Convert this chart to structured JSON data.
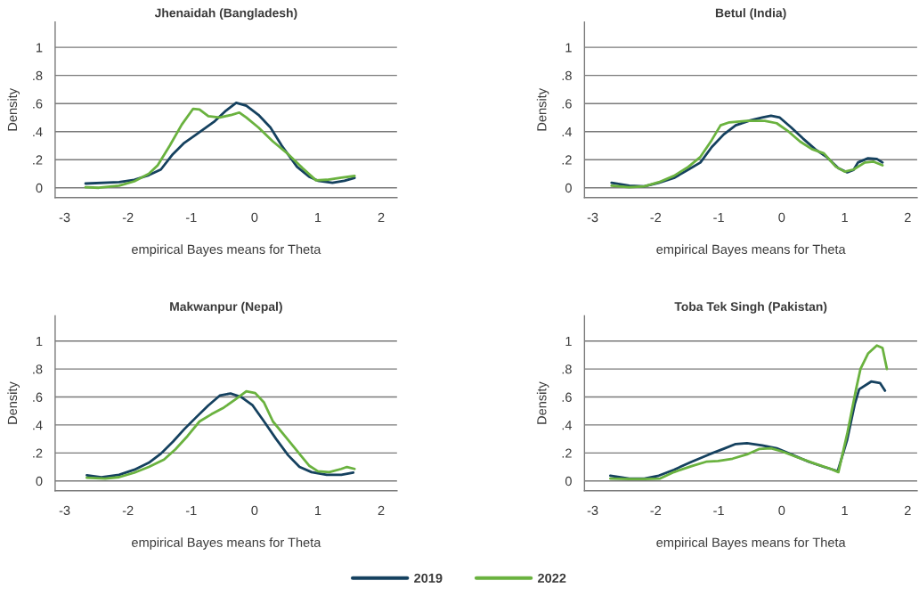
{
  "chart_data": [
    {
      "type": "line",
      "title": "Jhenaidah (Bangladesh)",
      "xlabel": "empirical Bayes means for Theta",
      "ylabel": "Density",
      "xlim": [
        -3.15,
        2.25
      ],
      "ylim": [
        -0.07,
        1.18
      ],
      "xticks": [
        -3,
        -2,
        -1,
        0,
        1,
        2
      ],
      "yticks": [
        0,
        {
          "value": 0.2,
          "label": ".2"
        },
        {
          "value": 0.4,
          "label": ".4"
        },
        {
          "value": 0.6,
          "label": ".6"
        },
        {
          "value": 0.8,
          "label": ".8"
        },
        1
      ],
      "grid": "y",
      "line_style": "solid",
      "marker": "none",
      "series": [
        {
          "color": "#15415f",
          "x": [
            -2.67,
            -2.14,
            -1.9,
            -1.67,
            -1.48,
            -1.29,
            -1.11,
            -0.92,
            -0.64,
            -0.45,
            -0.29,
            -0.13,
            0.06,
            0.25,
            0.43,
            0.67,
            0.86,
            1.0,
            1.23,
            1.42,
            1.58
          ],
          "values": [
            0.03,
            0.04,
            0.057,
            0.09,
            0.13,
            0.24,
            0.32,
            0.38,
            0.47,
            0.55,
            0.605,
            0.585,
            0.52,
            0.43,
            0.3,
            0.15,
            0.08,
            0.05,
            0.036,
            0.05,
            0.07
          ]
        },
        {
          "color": "#6ab23f",
          "x": [
            -2.67,
            -2.46,
            -2.14,
            -1.9,
            -1.67,
            -1.53,
            -1.34,
            -1.15,
            -0.97,
            -0.87,
            -0.73,
            -0.55,
            -0.36,
            -0.24,
            -0.13,
            0.06,
            0.29,
            0.53,
            0.76,
            0.97,
            1.14,
            1.37,
            1.58
          ],
          "values": [
            0.004,
            0.0,
            0.015,
            0.046,
            0.1,
            0.16,
            0.3,
            0.45,
            0.563,
            0.557,
            0.51,
            0.5,
            0.52,
            0.536,
            0.5,
            0.43,
            0.33,
            0.24,
            0.14,
            0.053,
            0.057,
            0.072,
            0.084
          ]
        }
      ]
    },
    {
      "type": "line",
      "title": "Betul (India)",
      "xlabel": "empirical Bayes means for Theta",
      "ylabel": "Density",
      "xlim": [
        -3.13,
        2.15
      ],
      "ylim": [
        -0.07,
        1.18
      ],
      "xticks": [
        -3,
        -2,
        -1,
        0,
        1,
        2
      ],
      "yticks": [
        0,
        {
          "value": 0.2,
          "label": ".2"
        },
        {
          "value": 0.4,
          "label": ".4"
        },
        {
          "value": 0.6,
          "label": ".6"
        },
        {
          "value": 0.8,
          "label": ".8"
        },
        1
      ],
      "grid": "y",
      "line_style": "solid",
      "marker": "none",
      "series": [
        {
          "color": "#15415f",
          "x": [
            -2.7,
            -2.42,
            -2.18,
            -1.95,
            -1.71,
            -1.48,
            -1.29,
            -1.11,
            -0.92,
            -0.73,
            -0.5,
            -0.31,
            -0.17,
            -0.03,
            0.15,
            0.34,
            0.53,
            0.71,
            0.9,
            1.04,
            1.14,
            1.21,
            1.37,
            1.51,
            1.6
          ],
          "values": [
            0.036,
            0.015,
            0.01,
            0.036,
            0.07,
            0.13,
            0.18,
            0.29,
            0.38,
            0.445,
            0.48,
            0.5,
            0.513,
            0.5,
            0.43,
            0.35,
            0.275,
            0.22,
            0.14,
            0.11,
            0.127,
            0.18,
            0.21,
            0.205,
            0.18
          ]
        },
        {
          "color": "#6ab23f",
          "x": [
            -2.7,
            -2.42,
            -2.18,
            -1.95,
            -1.71,
            -1.48,
            -1.29,
            -1.11,
            -0.97,
            -0.83,
            -0.55,
            -0.27,
            -0.08,
            0.11,
            0.29,
            0.48,
            0.67,
            0.86,
            1.0,
            1.14,
            1.32,
            1.46,
            1.6
          ],
          "values": [
            0.015,
            0.004,
            0.01,
            0.04,
            0.085,
            0.15,
            0.22,
            0.34,
            0.445,
            0.466,
            0.477,
            0.477,
            0.46,
            0.4,
            0.33,
            0.275,
            0.245,
            0.15,
            0.115,
            0.13,
            0.18,
            0.186,
            0.16
          ]
        }
      ]
    },
    {
      "type": "line",
      "title": "Makwanpur (Nepal)",
      "xlabel": "empirical Bayes means for Theta",
      "ylabel": "Density",
      "xlim": [
        -3.15,
        2.25
      ],
      "ylim": [
        -0.07,
        1.18
      ],
      "xticks": [
        -3,
        -2,
        -1,
        0,
        1,
        2
      ],
      "yticks": [
        0,
        {
          "value": 0.2,
          "label": ".2"
        },
        {
          "value": 0.4,
          "label": ".4"
        },
        {
          "value": 0.6,
          "label": ".6"
        },
        {
          "value": 0.8,
          "label": ".8"
        },
        1
      ],
      "grid": "y",
      "line_style": "solid",
      "marker": "none",
      "series": [
        {
          "color": "#15415f",
          "x": [
            -2.65,
            -2.42,
            -2.14,
            -1.9,
            -1.67,
            -1.48,
            -1.29,
            -1.11,
            -0.92,
            -0.73,
            -0.55,
            -0.38,
            -0.21,
            -0.03,
            0.15,
            0.34,
            0.53,
            0.71,
            0.9,
            1.14,
            1.37,
            1.56
          ],
          "values": [
            0.04,
            0.027,
            0.044,
            0.08,
            0.13,
            0.195,
            0.28,
            0.37,
            0.456,
            0.54,
            0.61,
            0.625,
            0.6,
            0.54,
            0.425,
            0.3,
            0.184,
            0.1,
            0.063,
            0.044,
            0.044,
            0.059
          ]
        },
        {
          "color": "#6ab23f",
          "x": [
            -2.65,
            -2.36,
            -2.14,
            -1.9,
            -1.67,
            -1.43,
            -1.25,
            -1.06,
            -0.87,
            -0.68,
            -0.5,
            -0.31,
            -0.13,
            0.01,
            0.15,
            0.29,
            0.48,
            0.67,
            0.86,
            1.0,
            1.18,
            1.37,
            1.46,
            1.58
          ],
          "values": [
            0.023,
            0.017,
            0.027,
            0.059,
            0.1,
            0.153,
            0.226,
            0.32,
            0.425,
            0.477,
            0.52,
            0.58,
            0.64,
            0.628,
            0.56,
            0.425,
            0.32,
            0.215,
            0.11,
            0.069,
            0.063,
            0.086,
            0.1,
            0.086
          ]
        }
      ]
    },
    {
      "type": "line",
      "title": "Toba Tek Singh (Pakistan)",
      "xlabel": "empirical Bayes means for Theta",
      "ylabel": "Density",
      "xlim": [
        -3.13,
        2.15
      ],
      "ylim": [
        -0.07,
        1.18
      ],
      "xticks": [
        -3,
        -2,
        -1,
        0,
        1,
        2
      ],
      "yticks": [
        0,
        {
          "value": 0.2,
          "label": ".2"
        },
        {
          "value": 0.4,
          "label": ".4"
        },
        {
          "value": 0.6,
          "label": ".6"
        },
        {
          "value": 0.8,
          "label": ".8"
        },
        1
      ],
      "grid": "y",
      "line_style": "solid",
      "marker": "none",
      "legend": "bottom",
      "series": [
        {
          "name": "2019",
          "color": "#15415f",
          "x": [
            -2.72,
            -2.42,
            -2.18,
            -1.95,
            -1.71,
            -1.43,
            -1.15,
            -0.92,
            -0.73,
            -0.55,
            -0.31,
            -0.08,
            0.15,
            0.43,
            0.67,
            0.89,
            1.04,
            1.16,
            1.23,
            1.42,
            1.56,
            1.64
          ],
          "values": [
            0.038,
            0.017,
            0.017,
            0.038,
            0.08,
            0.137,
            0.19,
            0.23,
            0.264,
            0.27,
            0.254,
            0.233,
            0.19,
            0.137,
            0.1,
            0.07,
            0.296,
            0.55,
            0.655,
            0.71,
            0.7,
            0.645
          ]
        },
        {
          "name": "2022",
          "color": "#6ab23f",
          "x": [
            -2.72,
            -2.42,
            -2.18,
            -1.93,
            -1.71,
            -1.43,
            -1.2,
            -1.01,
            -0.78,
            -0.55,
            -0.36,
            -0.17,
            0.01,
            0.25,
            0.53,
            0.76,
            0.9,
            1.04,
            1.18,
            1.25,
            1.37,
            1.51,
            1.6,
            1.67
          ],
          "values": [
            0.017,
            0.013,
            0.013,
            0.017,
            0.063,
            0.106,
            0.137,
            0.142,
            0.159,
            0.19,
            0.228,
            0.233,
            0.21,
            0.169,
            0.123,
            0.089,
            0.063,
            0.338,
            0.655,
            0.8,
            0.91,
            0.968,
            0.95,
            0.8
          ]
        }
      ]
    }
  ]
}
